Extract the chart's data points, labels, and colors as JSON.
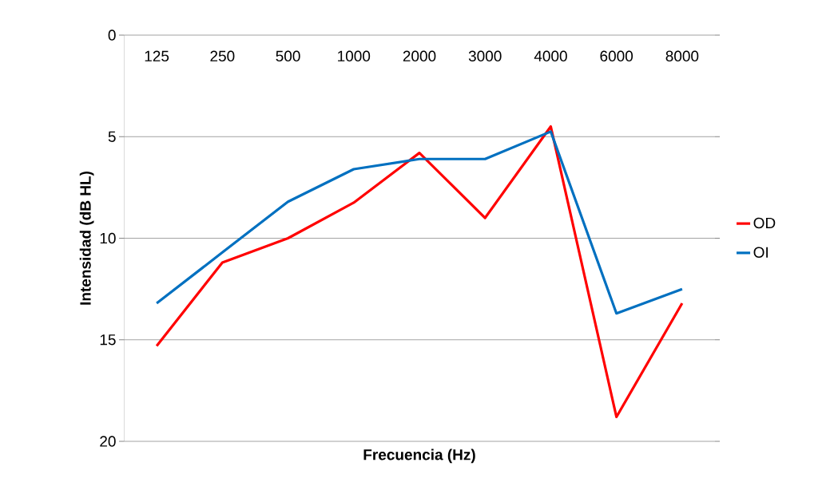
{
  "chart_data": {
    "type": "line",
    "xlabel": "Frecuencia (Hz)",
    "ylabel": "Intensidad (dB HL)",
    "categories": [
      "125",
      "250",
      "500",
      "1000",
      "2000",
      "3000",
      "4000",
      "6000",
      "8000"
    ],
    "series": [
      {
        "name": "OD",
        "color": "#ff0000",
        "values": [
          15.3,
          11.2,
          10.0,
          8.25,
          5.8,
          9.0,
          4.5,
          18.8,
          13.2
        ]
      },
      {
        "name": "OI",
        "color": "#0070c0",
        "values": [
          13.2,
          10.7,
          8.2,
          6.6,
          6.1,
          6.1,
          4.75,
          13.7,
          12.5
        ]
      }
    ],
    "ylim": [
      20,
      0
    ],
    "yticks": [
      0,
      5,
      10,
      15,
      20
    ],
    "grid": "y",
    "legend": "right",
    "marker": "none",
    "line_style": "solid"
  }
}
